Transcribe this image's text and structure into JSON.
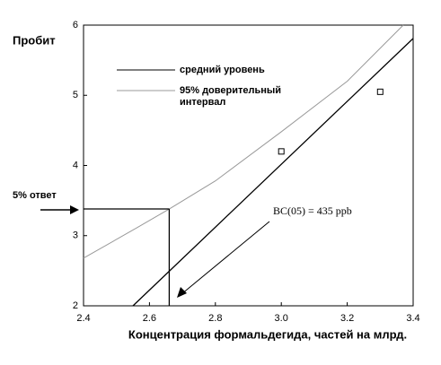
{
  "chart_data": {
    "type": "line",
    "y_label": "Пробит",
    "x_label": "Концентрация формальдегида, частей на млрд.",
    "xlim": [
      2.4,
      3.4
    ],
    "xticks": [
      2.4,
      2.6,
      2.8,
      {
        "value": 3,
        "label": "3.0"
      },
      3.2,
      3.4
    ],
    "ylim": [
      2,
      6
    ],
    "yticks": [
      2,
      3,
      4,
      5,
      6
    ],
    "series": [
      {
        "name": "средний уровень",
        "color": "#000000",
        "x": [
          2.55,
          3.4
        ],
        "values": [
          2,
          5.81
        ]
      },
      {
        "name": "95% доверительный интервал",
        "color": "#999999",
        "x": [
          2.4,
          2.55,
          2.66,
          2.8,
          3.0,
          3.2,
          3.37
        ],
        "values": [
          2.68,
          3.08,
          3.38,
          3.78,
          4.48,
          5.2,
          6
        ]
      }
    ],
    "points": {
      "x": [
        3.0,
        3.3
      ],
      "values": [
        4.2,
        5.05
      ]
    },
    "response_level": {
      "label": "5% ответ",
      "y": 3.38,
      "x": 2.66
    },
    "annotation": "BC(05) = 435 ppb"
  }
}
